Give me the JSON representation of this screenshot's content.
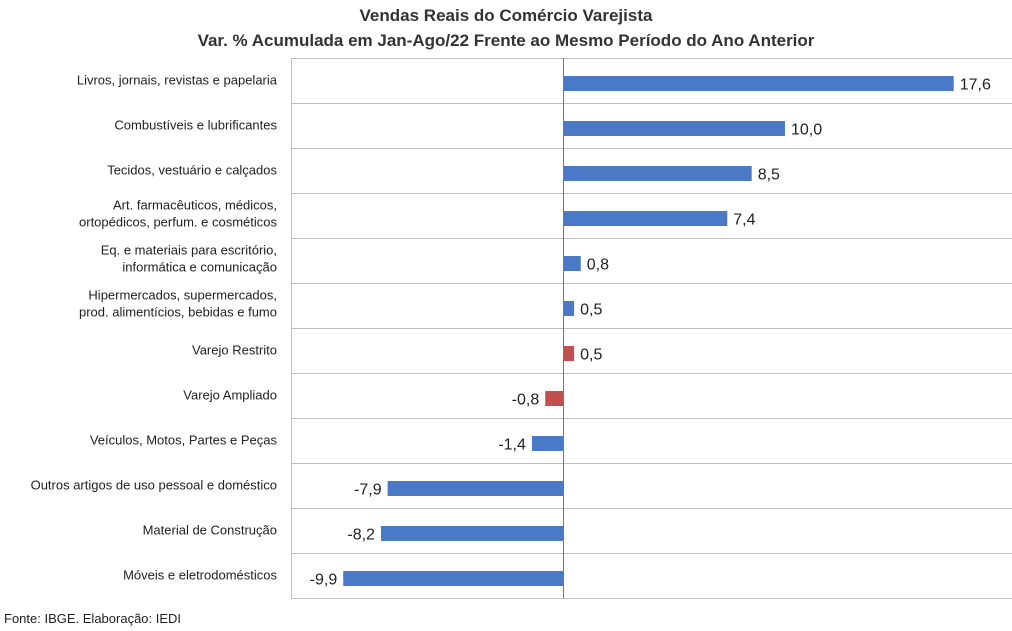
{
  "chart_data": {
    "type": "bar",
    "orientation": "horizontal",
    "title": "Vendas Reais do Comércio Varejista",
    "subtitle": "Var. % Acumulada em Jan-Ago/22 Frente ao Mesmo Período do Ano Anterior",
    "categories": [
      [
        "Livros, jornais, revistas e papelaria"
      ],
      [
        "Combustíveis e lubrificantes"
      ],
      [
        "Tecidos, vestuário e calçados"
      ],
      [
        "Art. farmacêuticos, médicos,",
        "ortopédicos, perfum. e cosméticos"
      ],
      [
        "Eq. e materiais para escritório,",
        "informática e comunicação"
      ],
      [
        "Hipermercados, supermercados,",
        "prod. alimentícios, bebidas e fumo"
      ],
      [
        "Varejo Restrito"
      ],
      [
        "Varejo Ampliado"
      ],
      [
        "Veículos, Motos, Partes e Peças"
      ],
      [
        "Outros artigos de uso pessoal e doméstico"
      ],
      [
        "Material de Construção"
      ],
      [
        "Móveis e eletrodomésticos"
      ]
    ],
    "values": [
      17.6,
      10.0,
      8.5,
      7.4,
      0.8,
      0.5,
      0.5,
      -0.8,
      -1.4,
      -7.9,
      -8.2,
      -9.9
    ],
    "value_labels": [
      "17,6",
      "10,0",
      "8,5",
      "7,4",
      "0,8",
      "0,5",
      "0,5",
      "-0,8",
      "-1,4",
      "-7,9",
      "-8,2",
      "-9,9"
    ],
    "highlight": [
      false,
      false,
      false,
      false,
      false,
      false,
      true,
      true,
      false,
      false,
      false,
      false
    ],
    "colors": {
      "bar": "#4a7ac6",
      "highlight": "#c0504d",
      "grid": "#bfbfbf"
    },
    "grid": true
  },
  "source": "Fonte: IBGE. Elaboração: IEDI"
}
